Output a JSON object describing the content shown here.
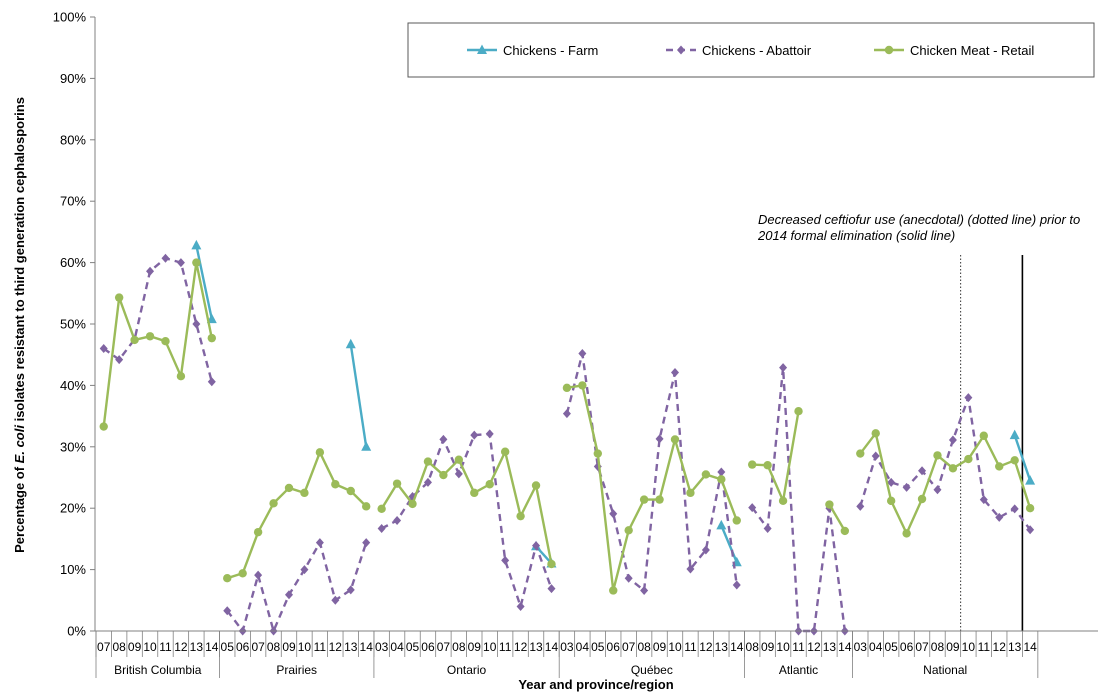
{
  "chart_data": {
    "type": "line",
    "ylabel": "Percentage of E. coli isolates resistant to third generation cephalosporins",
    "ylabel_prefix": "Percentage of ",
    "ylabel_italic": "E. coli",
    "ylabel_suffix": " isolates resistant to third generation cephalosporins",
    "xlabel": "Year and province/region",
    "ylim": [
      0,
      100
    ],
    "yticks": [
      "0%",
      "10%",
      "20%",
      "30%",
      "40%",
      "50%",
      "60%",
      "70%",
      "80%",
      "90%",
      "100%"
    ],
    "legend_position": "top-right",
    "colors": {
      "farm": "#4BACC6",
      "abattoir": "#8064A2",
      "retail": "#9BBB59"
    },
    "annotation": [
      "Decreased ceftiofur use (anecdotal) (dotted line) prior to",
      "2014 formal elimination (solid line)"
    ],
    "groups": [
      {
        "name": "British Columbia",
        "years": [
          "07",
          "08",
          "09",
          "10",
          "11",
          "12",
          "13",
          "14"
        ]
      },
      {
        "name": "Prairies",
        "years": [
          "05",
          "06",
          "07",
          "08",
          "09",
          "10",
          "11",
          "12",
          "13",
          "14"
        ]
      },
      {
        "name": "Ontario",
        "years": [
          "03",
          "04",
          "05",
          "06",
          "07",
          "08",
          "09",
          "10",
          "11",
          "12",
          "13",
          "14"
        ]
      },
      {
        "name": "Québec",
        "years": [
          "03",
          "04",
          "05",
          "06",
          "07",
          "08",
          "09",
          "10",
          "11",
          "12",
          "13",
          "14"
        ]
      },
      {
        "name": "Atlantic",
        "years": [
          "08",
          "09",
          "10",
          "11",
          "12",
          "13",
          "14"
        ]
      },
      {
        "name": "National",
        "years": [
          "03",
          "04",
          "05",
          "06",
          "07",
          "08",
          "09",
          "10",
          "11",
          "12",
          "13",
          "14"
        ]
      }
    ],
    "series": [
      {
        "name": "Chickens - Farm",
        "marker": "triangle",
        "dash": false,
        "values": [
          [
            null,
            null,
            null,
            null,
            null,
            null,
            62.8,
            50.8
          ],
          [
            null,
            null,
            null,
            null,
            null,
            null,
            null,
            null,
            46.7,
            30.0
          ],
          [
            null,
            null,
            null,
            null,
            null,
            null,
            null,
            null,
            null,
            null,
            13.8,
            11.0
          ],
          [
            null,
            null,
            null,
            null,
            null,
            null,
            null,
            null,
            null,
            null,
            17.2,
            11.2
          ],
          [
            null,
            null,
            null,
            null,
            null,
            null,
            null
          ],
          [
            null,
            null,
            null,
            null,
            null,
            null,
            null,
            null,
            null,
            null,
            31.9,
            24.5
          ]
        ]
      },
      {
        "name": "Chickens - Abattoir",
        "marker": "diamond",
        "dash": true,
        "values": [
          [
            46.0,
            44.2,
            47.5,
            58.6,
            60.7,
            60.0,
            50.0,
            40.6
          ],
          [
            3.3,
            0.0,
            9.1,
            0.0,
            5.9,
            10.0,
            14.4,
            5.0,
            6.7,
            14.4
          ],
          [
            16.7,
            18.0,
            21.9,
            24.2,
            31.2,
            25.6,
            31.9,
            32.1,
            11.5,
            4.0,
            13.9,
            6.9
          ],
          [
            35.4,
            45.2,
            26.8,
            19.1,
            8.6,
            6.6,
            31.3,
            42.1,
            10.1,
            13.2,
            25.9,
            7.5
          ],
          [
            20.1,
            16.7,
            42.9,
            0.0,
            0.0,
            20.0,
            0.0
          ],
          [
            20.3,
            28.5,
            24.2,
            23.4,
            26.1,
            23.0,
            31.1,
            38.0,
            21.4,
            18.5,
            19.9,
            16.5
          ]
        ]
      },
      {
        "name": "Chicken Meat - Retail",
        "marker": "circle",
        "dash": false,
        "values": [
          [
            33.3,
            54.3,
            47.4,
            48.0,
            47.2,
            41.5,
            60.0,
            47.7
          ],
          [
            8.6,
            9.4,
            16.1,
            20.8,
            23.3,
            22.5,
            29.1,
            23.9,
            22.8,
            20.3
          ],
          [
            19.9,
            24.0,
            20.7,
            27.6,
            25.4,
            27.9,
            22.5,
            23.9,
            29.2,
            18.7,
            23.7,
            10.9
          ],
          [
            39.6,
            40.0,
            28.9,
            6.6,
            16.4,
            21.4,
            21.4,
            31.2,
            22.5,
            25.5,
            24.7,
            18.0
          ],
          [
            27.1,
            27.0,
            21.2,
            35.8,
            null,
            20.6,
            16.3
          ],
          [
            28.9,
            32.2,
            21.2,
            15.9,
            21.5,
            28.6,
            26.5,
            28.0,
            31.8,
            26.8,
            27.8,
            20.0
          ]
        ]
      }
    ]
  }
}
